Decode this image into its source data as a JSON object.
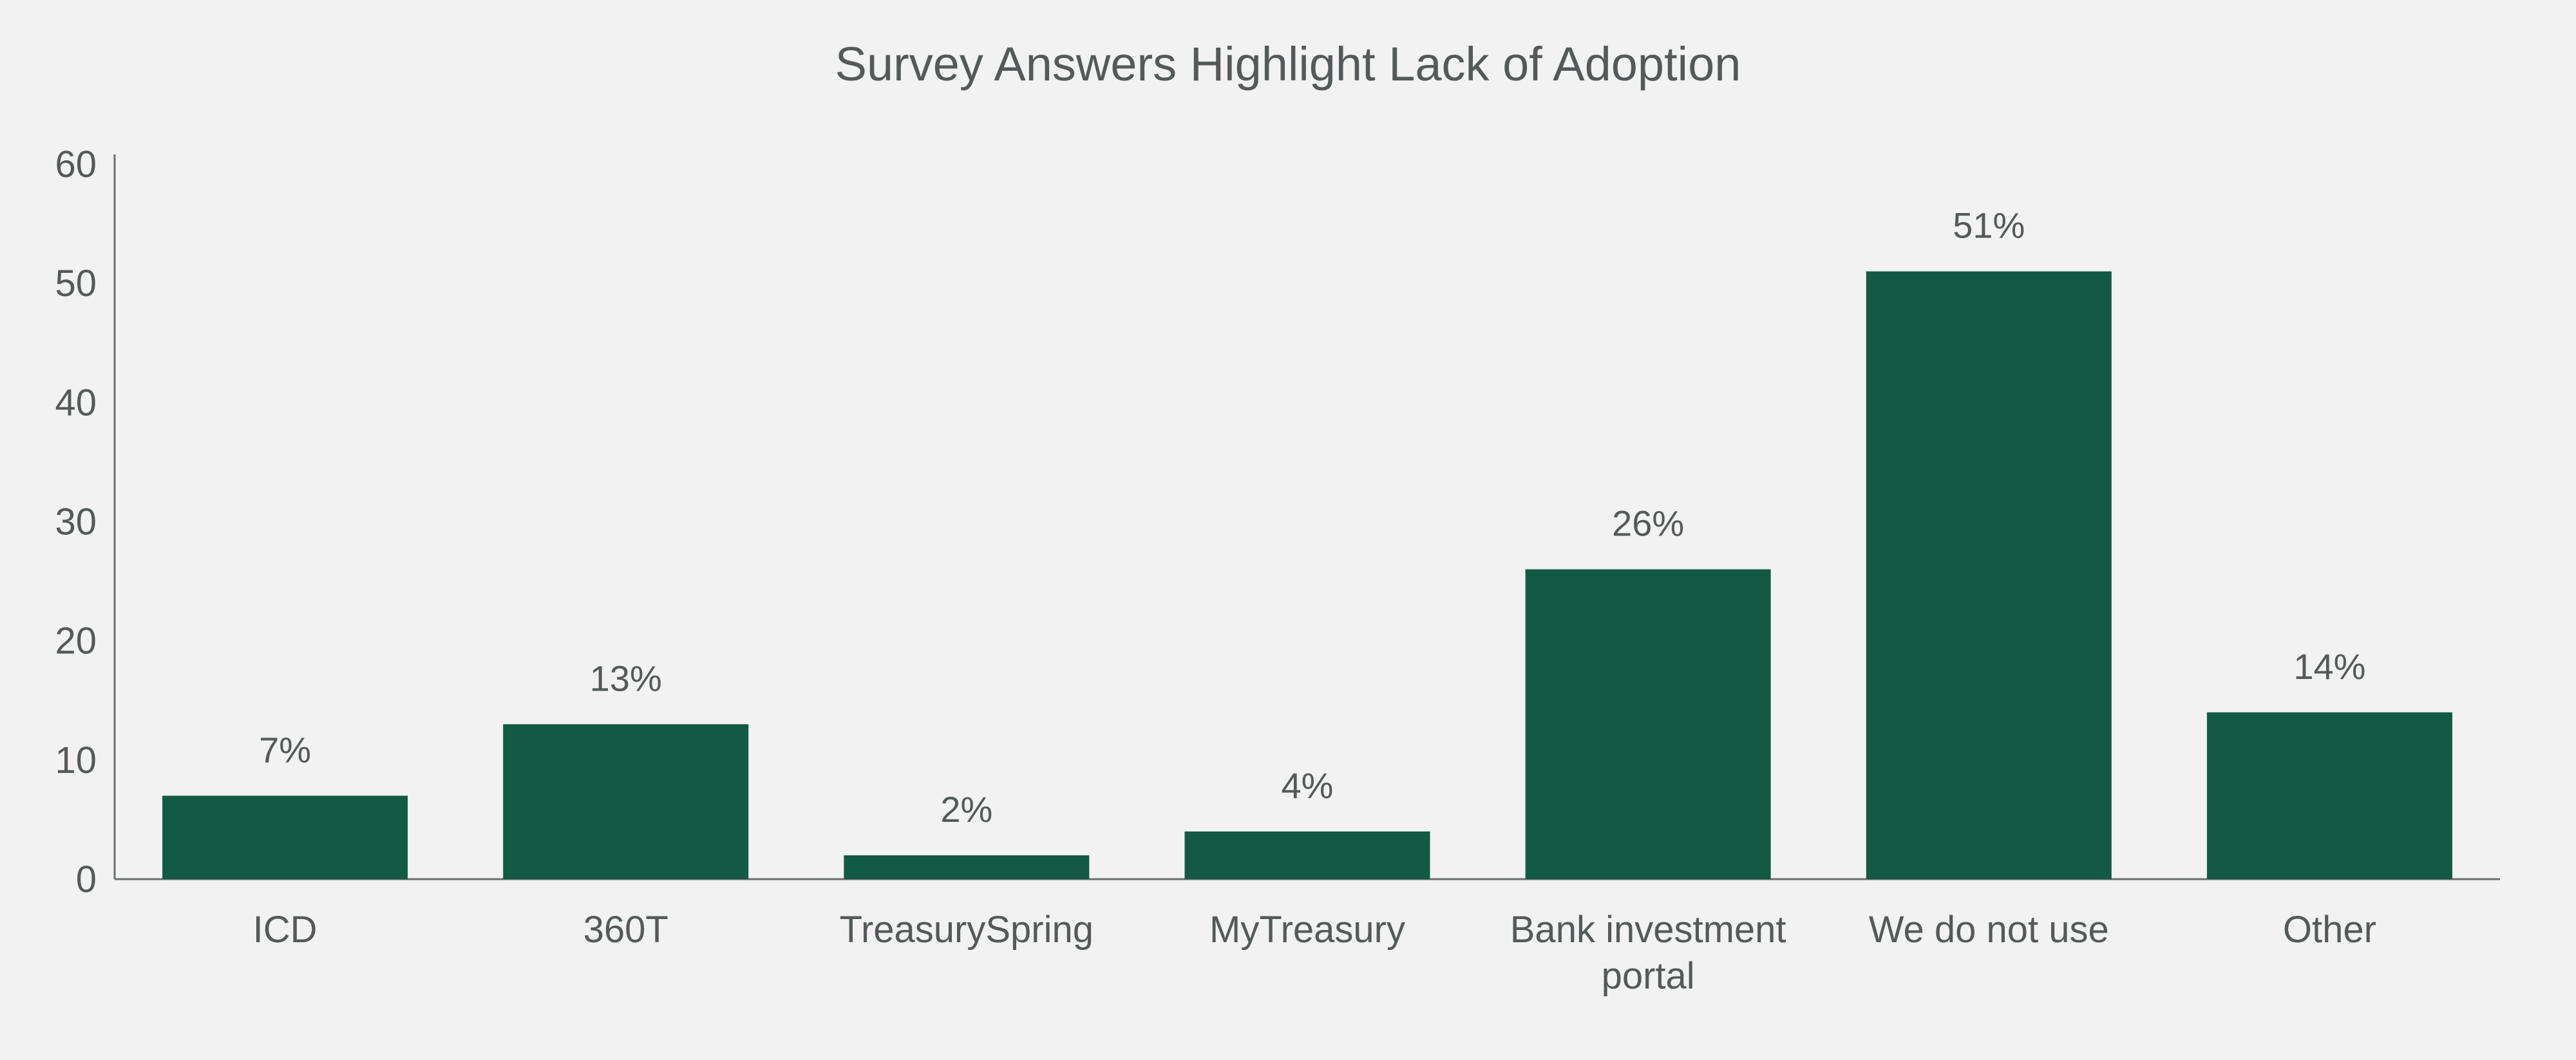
{
  "chart_data": {
    "type": "bar",
    "title": "Survey Answers Highlight Lack of Adoption",
    "xlabel": "",
    "ylabel": "",
    "categories": [
      [
        "ICD"
      ],
      [
        "360T"
      ],
      [
        "TreasurySpring"
      ],
      [
        "MyTreasury"
      ],
      [
        "Bank investment",
        "portal"
      ],
      [
        "We do not use"
      ],
      [
        "Other"
      ]
    ],
    "values": [
      7,
      13,
      2,
      4,
      26,
      51,
      14
    ],
    "data_labels": [
      "7%",
      "13%",
      "2%",
      "4%",
      "26%",
      "51%",
      "14%"
    ],
    "ylim": [
      0,
      60
    ],
    "yticks": [
      0,
      10,
      20,
      30,
      40,
      50,
      60
    ],
    "ytick_labels": [
      "0",
      "10",
      "20",
      "30",
      "40",
      "50",
      "60"
    ],
    "bar_color": "#125a43",
    "grid": false,
    "legend": "none"
  }
}
